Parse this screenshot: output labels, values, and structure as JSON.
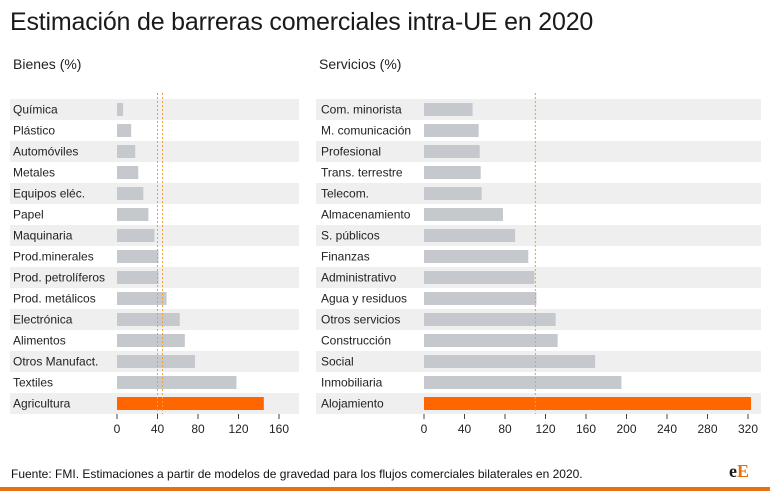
{
  "title": "Estimación de barreras comerciales intra-UE en 2020",
  "footer": {
    "source": "Fuente: FMI. Estimaciones a partir de modelos de gravedad para los flujos comerciales bilaterales en 2020.",
    "logo_a": "e",
    "logo_b": "E"
  },
  "colors": {
    "bar": "#c5c9ce",
    "highlight": "#ff6600",
    "band": "#efefef",
    "refline": "#f0a030"
  },
  "chart_data": [
    {
      "type": "bar",
      "orientation": "horizontal",
      "title": "Bienes (%)",
      "categories": [
        "Química",
        "Plástico",
        "Automóviles",
        "Metales",
        "Equipos eléc.",
        "Papel",
        "Maquinaria",
        "Prod.minerales",
        "Prod. petrolíferos",
        "Prod. metálicos",
        "Electrónica",
        "Alimentos",
        "Otros Manufact.",
        "Textiles",
        "Agricultura"
      ],
      "values": [
        6,
        14,
        18,
        21,
        26,
        31,
        37,
        41,
        41,
        49,
        62,
        67,
        77,
        118,
        145
      ],
      "highlight": "Agricultura",
      "reference_lines": [
        40,
        45
      ],
      "xlim": [
        0,
        180
      ],
      "ticks": [
        0,
        40,
        80,
        120,
        160
      ],
      "grid": false
    },
    {
      "type": "bar",
      "orientation": "horizontal",
      "title": "Servicios (%)",
      "categories": [
        "Com. minorista",
        "M. comunicación",
        "Profesional",
        "Trans. terrestre",
        "Telecom.",
        "Almacenamiento",
        "S. públicos",
        "Finanzas",
        "Administrativo",
        "Agua y residuos",
        "Otros servicios",
        "Construcción",
        "Social",
        "Inmobiliaria",
        "Alojamiento"
      ],
      "values": [
        48,
        54,
        55,
        56,
        57,
        78,
        90,
        103,
        109,
        111,
        130,
        132,
        169,
        195,
        323
      ],
      "highlight": "Alojamiento",
      "reference_lines": [
        110
      ],
      "xlim": [
        0,
        320
      ],
      "ticks": [
        0,
        40,
        80,
        120,
        160,
        200,
        240,
        280,
        320
      ],
      "grid": false
    }
  ]
}
